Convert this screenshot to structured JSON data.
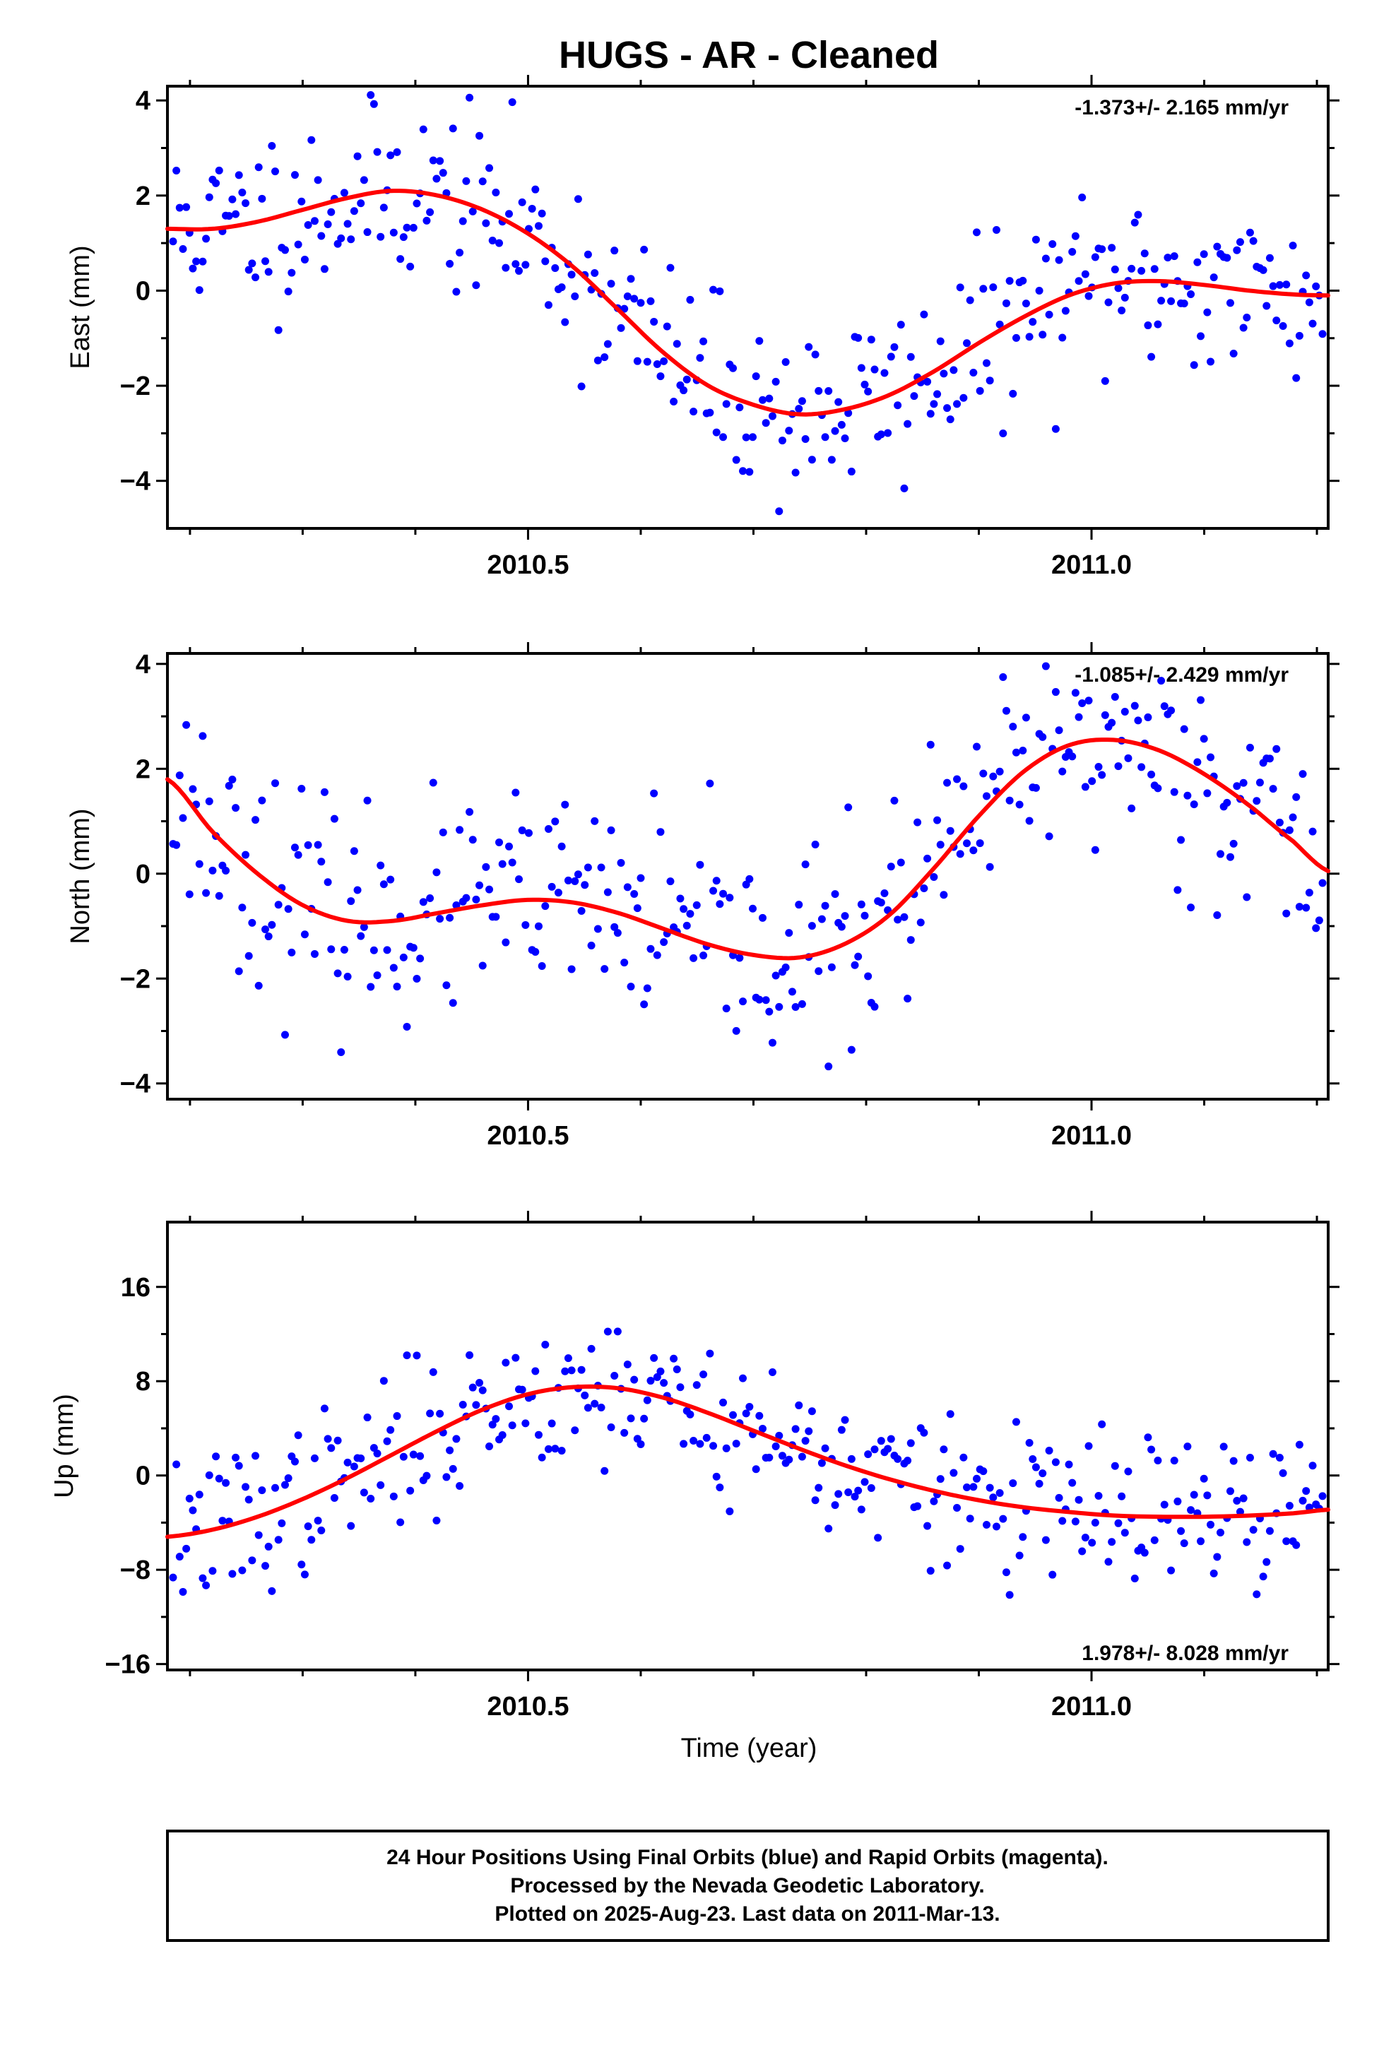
{
  "title": "HUGS  - AR - Cleaned",
  "xlabel": "Time (year)",
  "caption": [
    "24 Hour Positions Using Final Orbits (blue) and Rapid Orbits (magenta).",
    "Processed by the Nevada Geodetic Laboratory.",
    "Plotted on 2025-Aug-23. Last data on 2011-Mar-13."
  ],
  "colors": {
    "points": "#0000ff",
    "fit": "#ff0000",
    "frame": "#000000"
  },
  "chart_data": [
    {
      "type": "scatter",
      "ylabel": "East (mm)",
      "rate": "-1.373+/- 2.165 mm/yr",
      "rate_position": "top-right",
      "xlim": [
        2010.18,
        2011.21
      ],
      "ylim": [
        -5.0,
        4.3
      ],
      "yticks": [
        -4,
        -2,
        0,
        2,
        4
      ],
      "ytick_labels": [
        "−4",
        "−2",
        "0",
        "2",
        "4"
      ],
      "xticks": [
        2010.5,
        2011.0
      ],
      "xtick_labels": [
        "2010.5",
        "2011.0"
      ],
      "grid": false,
      "fit_series": {
        "name": "",
        "x": [
          2010.18,
          2010.22,
          2010.26,
          2010.3,
          2010.34,
          2010.38,
          2010.42,
          2010.46,
          2010.5,
          2010.54,
          2010.58,
          2010.62,
          2010.66,
          2010.7,
          2010.74,
          2010.78,
          2010.82,
          2010.86,
          2010.9,
          2010.94,
          2010.98,
          2011.02,
          2011.06,
          2011.1,
          2011.14,
          2011.18,
          2011.21
        ],
        "y": [
          1.3,
          1.3,
          1.45,
          1.7,
          1.95,
          2.1,
          2.0,
          1.7,
          1.2,
          0.5,
          -0.4,
          -1.3,
          -2.0,
          -2.4,
          -2.6,
          -2.5,
          -2.2,
          -1.7,
          -1.1,
          -0.55,
          -0.1,
          0.15,
          0.2,
          0.12,
          0.0,
          -0.08,
          -0.1
        ]
      },
      "points_model": {
        "n": 350,
        "noise_sd": 0.95,
        "seed": 11
      }
    },
    {
      "type": "scatter",
      "ylabel": "North (mm)",
      "rate": "-1.085+/- 2.429 mm/yr",
      "rate_position": "top-right",
      "xlim": [
        2010.18,
        2011.21
      ],
      "ylim": [
        -4.3,
        4.2
      ],
      "yticks": [
        -4,
        -2,
        0,
        2,
        4
      ],
      "ytick_labels": [
        "−4",
        "−2",
        "0",
        "2",
        "4"
      ],
      "xticks": [
        2010.5,
        2011.0
      ],
      "xtick_labels": [
        "2010.5",
        "2011.0"
      ],
      "grid": false,
      "fit_series": {
        "name": "",
        "x": [
          2010.18,
          2010.22,
          2010.26,
          2010.3,
          2010.34,
          2010.38,
          2010.42,
          2010.46,
          2010.5,
          2010.54,
          2010.58,
          2010.62,
          2010.66,
          2010.7,
          2010.74,
          2010.78,
          2010.82,
          2010.86,
          2010.9,
          2010.94,
          2010.98,
          2011.02,
          2011.06,
          2011.1,
          2011.14,
          2011.18,
          2011.21
        ],
        "y": [
          1.8,
          0.8,
          0.0,
          -0.6,
          -0.9,
          -0.9,
          -0.75,
          -0.6,
          -0.5,
          -0.55,
          -0.75,
          -1.05,
          -1.35,
          -1.55,
          -1.6,
          -1.35,
          -0.8,
          0.1,
          1.1,
          1.95,
          2.45,
          2.55,
          2.35,
          1.9,
          1.3,
          0.6,
          0.05
        ]
      },
      "points_model": {
        "n": 350,
        "noise_sd": 1.0,
        "seed": 23
      }
    },
    {
      "type": "scatter",
      "ylabel": "Up (mm)",
      "rate": "1.978+/- 8.028 mm/yr",
      "rate_position": "bottom-right",
      "xlim": [
        2010.18,
        2011.21
      ],
      "ylim": [
        -16.5,
        21.5
      ],
      "yticks": [
        -16,
        -8,
        0,
        8,
        16
      ],
      "ytick_labels": [
        "−16",
        "−8",
        "0",
        "8",
        "16"
      ],
      "xticks": [
        2010.5,
        2011.0
      ],
      "xtick_labels": [
        "2010.5",
        "2011.0"
      ],
      "grid": false,
      "fit_series": {
        "name": "",
        "x": [
          2010.18,
          2010.22,
          2010.26,
          2010.3,
          2010.34,
          2010.38,
          2010.42,
          2010.46,
          2010.5,
          2010.54,
          2010.58,
          2010.62,
          2010.66,
          2010.7,
          2010.74,
          2010.78,
          2010.82,
          2010.86,
          2010.9,
          2010.94,
          2010.98,
          2011.02,
          2011.06,
          2011.1,
          2011.14,
          2011.18,
          2011.21
        ],
        "y": [
          -5.2,
          -4.6,
          -3.5,
          -2.0,
          -0.2,
          1.8,
          3.8,
          5.6,
          6.9,
          7.5,
          7.4,
          6.6,
          5.3,
          3.8,
          2.3,
          0.9,
          -0.3,
          -1.3,
          -2.1,
          -2.7,
          -3.1,
          -3.4,
          -3.5,
          -3.5,
          -3.4,
          -3.2,
          -2.9
        ]
      },
      "points_model": {
        "n": 350,
        "noise_sd": 3.2,
        "seed": 37
      }
    }
  ]
}
